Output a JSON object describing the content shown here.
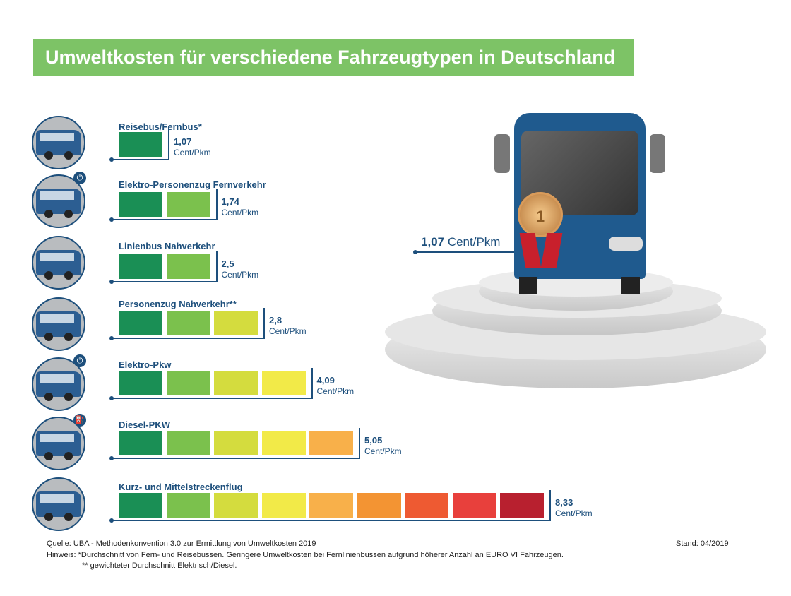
{
  "title": "Umweltkosten für verschiedene Fahrzeugtypen in Deutschland",
  "colors": [
    "#1a8f55",
    "#7bc14d",
    "#d4dc3e",
    "#f2ea48",
    "#f8b04a",
    "#f39433",
    "#ee5a32",
    "#e8403c",
    "#b8202f"
  ],
  "chart_data": {
    "type": "bar",
    "title": "Umweltkosten für verschiedene Fahrzeugtypen in Deutschland",
    "unit": "Cent/Pkm",
    "categories": [
      "Reisebus/Fernbus*",
      "Elektro-Personenzug Fernverkehr",
      "Linienbus Nahverkehr",
      "Personenzug Nahverkehr**",
      "Elektro-Pkw",
      "Diesel-PKW",
      "Kurz- und Mittelstreckenflug"
    ],
    "values": [
      1.07,
      1.74,
      2.5,
      2.8,
      4.09,
      5.05,
      8.33
    ],
    "value_labels": [
      "1,07",
      "1,74",
      "2,5",
      "2,8",
      "4,09",
      "5,05",
      "8,33"
    ],
    "blocks": [
      1,
      2,
      2,
      3,
      4,
      5,
      9
    ],
    "icons": [
      "coach-bus-icon",
      "electric-train-icon",
      "city-bus-icon",
      "regional-train-icon",
      "electric-car-icon",
      "diesel-car-icon",
      "airplane-icon"
    ]
  },
  "winner": {
    "value": "1,07",
    "unit": "Cent/Pkm",
    "medal": "1"
  },
  "footer": {
    "source": "Quelle: UBA - Methodenkonvention 3.0 zur Ermittlung von Umweltkosten 2019",
    "note1": "Hinweis: *Durchschnitt von Fern- und Reisebussen. Geringere Umweltkosten bei Fernlinienbussen aufgrund höherer Anzahl an EURO VI Fahrzeugen.",
    "note2": "** gewichteter Durchschnitt Elektrisch/Diesel.",
    "stand": "Stand: 04/2019"
  }
}
